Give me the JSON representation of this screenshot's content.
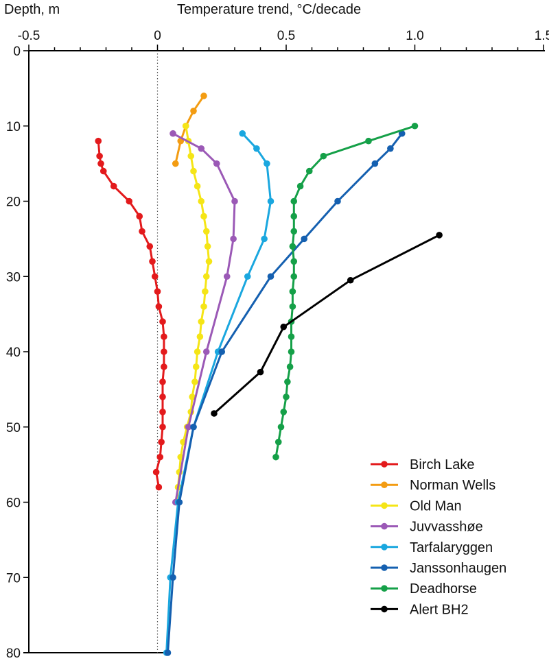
{
  "chart_data": {
    "type": "line",
    "title": "",
    "xlabel": "Temperature trend, °C/decade",
    "ylabel": "Depth, m",
    "xlim": [
      -0.5,
      1.5
    ],
    "ylim": [
      0,
      80
    ],
    "y_inverted": true,
    "x_axis_position": "top",
    "xticks": [
      "-0.5",
      "0",
      "0.5",
      "1.0",
      "1.5"
    ],
    "xtick_values": [
      -0.5,
      0,
      0.5,
      1.0,
      1.5
    ],
    "yticks": [
      "0",
      "10",
      "20",
      "30",
      "40",
      "50",
      "60",
      "70",
      "80"
    ],
    "ytick_values": [
      0,
      10,
      20,
      30,
      40,
      50,
      60,
      70,
      80
    ],
    "zero_reference_line": "dotted",
    "grid": false,
    "legend_position": "bottom-right",
    "series": [
      {
        "name": "Birch Lake",
        "color": "#e31a1c",
        "points": [
          [
            -0.23,
            12
          ],
          [
            -0.225,
            14
          ],
          [
            -0.22,
            15
          ],
          [
            -0.21,
            16
          ],
          [
            -0.17,
            18
          ],
          [
            -0.11,
            20
          ],
          [
            -0.07,
            22
          ],
          [
            -0.06,
            24
          ],
          [
            -0.03,
            26
          ],
          [
            -0.02,
            28
          ],
          [
            -0.01,
            30
          ],
          [
            0,
            32
          ],
          [
            0.005,
            34
          ],
          [
            0.02,
            36
          ],
          [
            0.025,
            38
          ],
          [
            0.025,
            40
          ],
          [
            0.025,
            42
          ],
          [
            0.02,
            44
          ],
          [
            0.02,
            46
          ],
          [
            0.02,
            48
          ],
          [
            0.02,
            50
          ],
          [
            0.015,
            52
          ],
          [
            0.01,
            54
          ],
          [
            -0.005,
            56
          ],
          [
            0.005,
            58
          ]
        ]
      },
      {
        "name": "Norman Wells",
        "color": "#f39c12",
        "points": [
          [
            0.18,
            6
          ],
          [
            0.14,
            8
          ],
          [
            0.11,
            10
          ],
          [
            0.09,
            12
          ],
          [
            0.07,
            15
          ]
        ]
      },
      {
        "name": "Old Man",
        "color": "#f5e516",
        "points": [
          [
            0.11,
            10
          ],
          [
            0.12,
            12
          ],
          [
            0.13,
            14
          ],
          [
            0.14,
            16
          ],
          [
            0.155,
            18
          ],
          [
            0.17,
            20
          ],
          [
            0.18,
            22
          ],
          [
            0.19,
            24
          ],
          [
            0.195,
            26
          ],
          [
            0.2,
            28
          ],
          [
            0.19,
            30
          ],
          [
            0.185,
            32
          ],
          [
            0.18,
            34
          ],
          [
            0.17,
            36
          ],
          [
            0.165,
            38
          ],
          [
            0.155,
            40
          ],
          [
            0.15,
            42
          ],
          [
            0.145,
            44
          ],
          [
            0.135,
            46
          ],
          [
            0.13,
            48
          ],
          [
            0.115,
            50
          ],
          [
            0.1,
            52
          ],
          [
            0.09,
            54
          ],
          [
            0.085,
            56
          ],
          [
            0.08,
            58
          ],
          [
            0.075,
            60
          ]
        ]
      },
      {
        "name": "Juvvasshøe",
        "color": "#9b59b6",
        "points": [
          [
            0.06,
            11
          ],
          [
            0.17,
            13
          ],
          [
            0.23,
            15
          ],
          [
            0.3,
            20
          ],
          [
            0.295,
            25
          ],
          [
            0.27,
            30
          ],
          [
            0.19,
            40
          ],
          [
            0.12,
            50
          ],
          [
            0.07,
            60
          ]
        ]
      },
      {
        "name": "Tarfalaryggen",
        "color": "#1aa7df",
        "points": [
          [
            0.33,
            11
          ],
          [
            0.385,
            13
          ],
          [
            0.425,
            15
          ],
          [
            0.44,
            20
          ],
          [
            0.415,
            25
          ],
          [
            0.35,
            30
          ],
          [
            0.235,
            40
          ],
          [
            0.14,
            50
          ],
          [
            0.08,
            60
          ],
          [
            0.05,
            70
          ],
          [
            0.035,
            80
          ]
        ]
      },
      {
        "name": "Janssonhaugen",
        "color": "#1560b0",
        "points": [
          [
            0.95,
            11
          ],
          [
            0.905,
            13
          ],
          [
            0.845,
            15
          ],
          [
            0.7,
            20
          ],
          [
            0.57,
            25
          ],
          [
            0.44,
            30
          ],
          [
            0.25,
            40
          ],
          [
            0.14,
            50
          ],
          [
            0.085,
            60
          ],
          [
            0.06,
            70
          ],
          [
            0.04,
            80
          ]
        ]
      },
      {
        "name": "Deadhorse",
        "color": "#15a048",
        "points": [
          [
            1.0,
            10
          ],
          [
            0.82,
            12
          ],
          [
            0.645,
            14
          ],
          [
            0.59,
            16
          ],
          [
            0.555,
            18
          ],
          [
            0.53,
            20
          ],
          [
            0.53,
            22
          ],
          [
            0.53,
            24
          ],
          [
            0.525,
            26
          ],
          [
            0.53,
            28
          ],
          [
            0.53,
            30
          ],
          [
            0.525,
            32
          ],
          [
            0.525,
            34
          ],
          [
            0.52,
            36
          ],
          [
            0.52,
            38
          ],
          [
            0.52,
            40
          ],
          [
            0.515,
            42
          ],
          [
            0.505,
            44
          ],
          [
            0.5,
            46
          ],
          [
            0.49,
            48
          ],
          [
            0.48,
            50
          ],
          [
            0.47,
            52
          ],
          [
            0.46,
            54
          ]
        ]
      },
      {
        "name": "Alert BH2",
        "color": "#000000",
        "points": [
          [
            1.095,
            24.5
          ],
          [
            0.75,
            30.5
          ],
          [
            0.49,
            36.7
          ],
          [
            0.4,
            42.7
          ],
          [
            0.22,
            48.2
          ]
        ]
      }
    ]
  }
}
